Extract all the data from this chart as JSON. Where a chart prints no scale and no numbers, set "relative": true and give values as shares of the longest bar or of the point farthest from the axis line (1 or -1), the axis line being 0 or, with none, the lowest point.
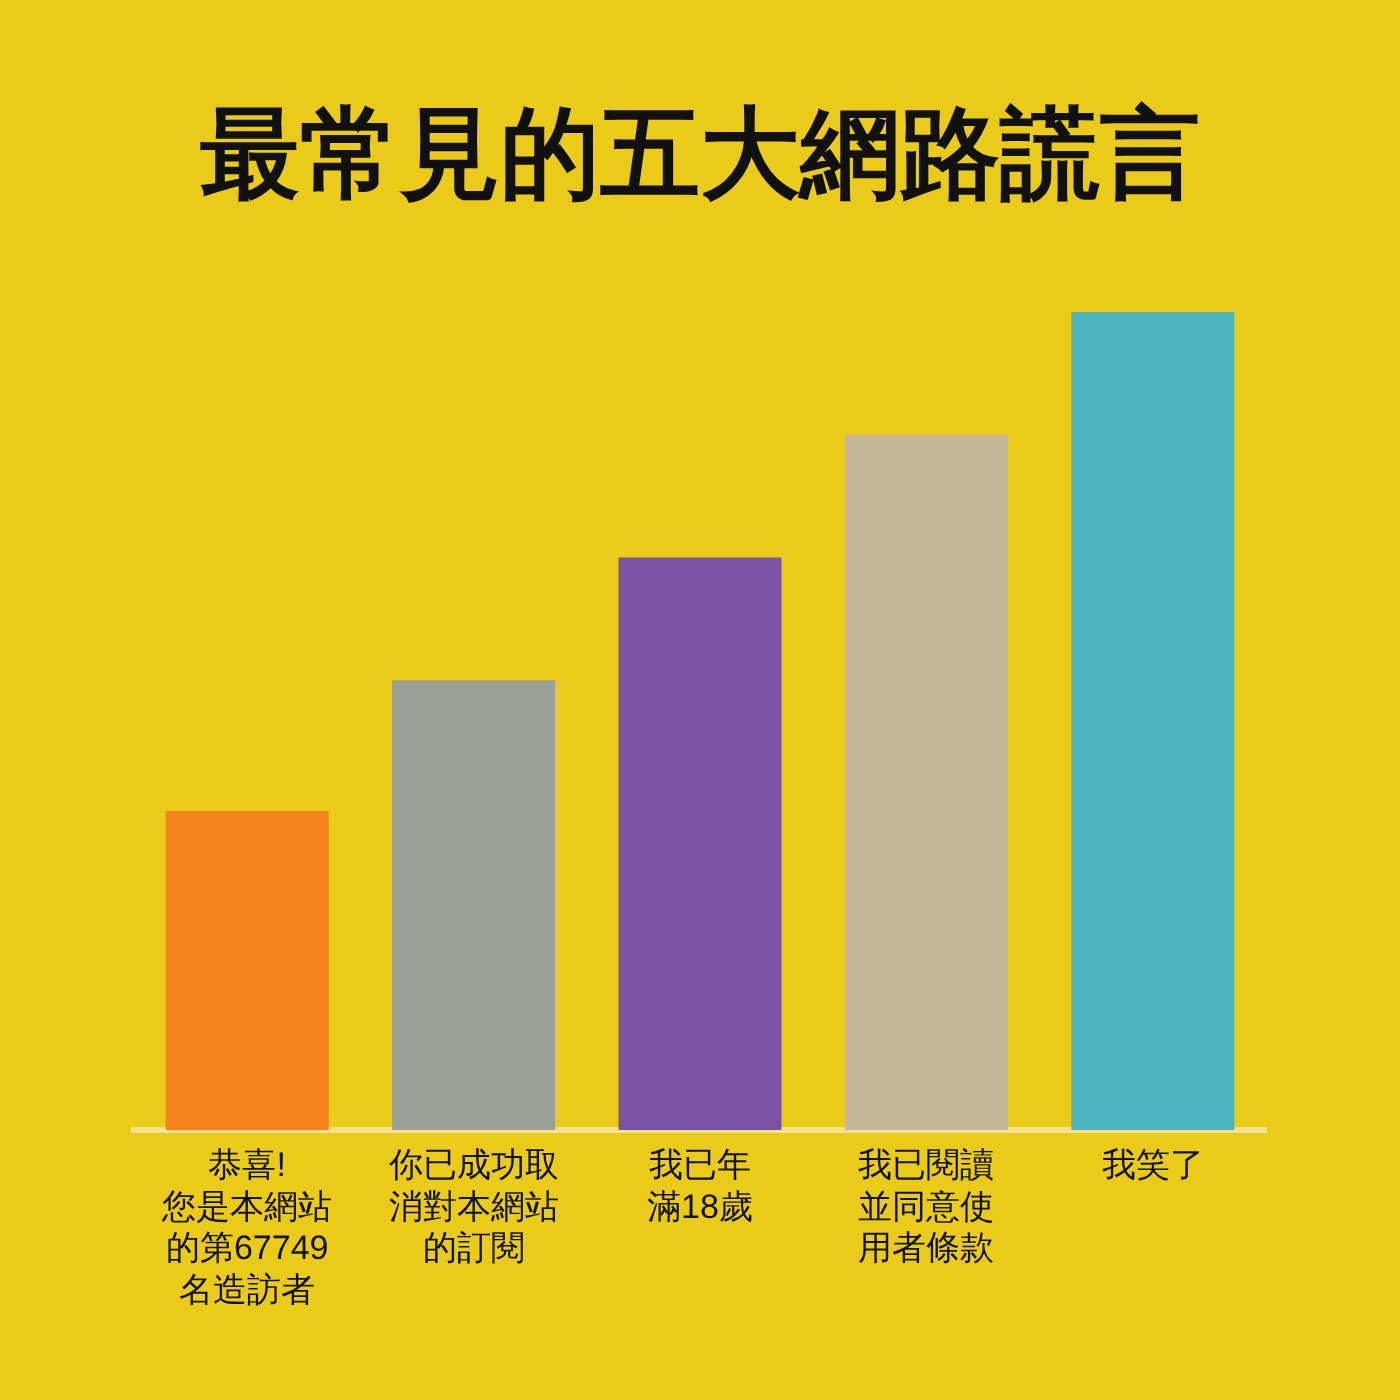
{
  "chart_data": {
    "type": "bar",
    "title": "最常見的五大網路謊言",
    "categories": [
      "恭喜!您是本網站的第67749名造訪者",
      "你已成功取消對本網站的訂閱",
      "我已年滿18歲",
      "我已閱讀並同意使用者條款",
      "我笑了"
    ],
    "values": [
      0.39,
      0.55,
      0.7,
      0.85,
      1
    ],
    "colors": [
      "#f4821f",
      "#9ba097",
      "#7a52a2",
      "#c6b79b",
      "#4bb4be"
    ],
    "relative": true
  }
}
